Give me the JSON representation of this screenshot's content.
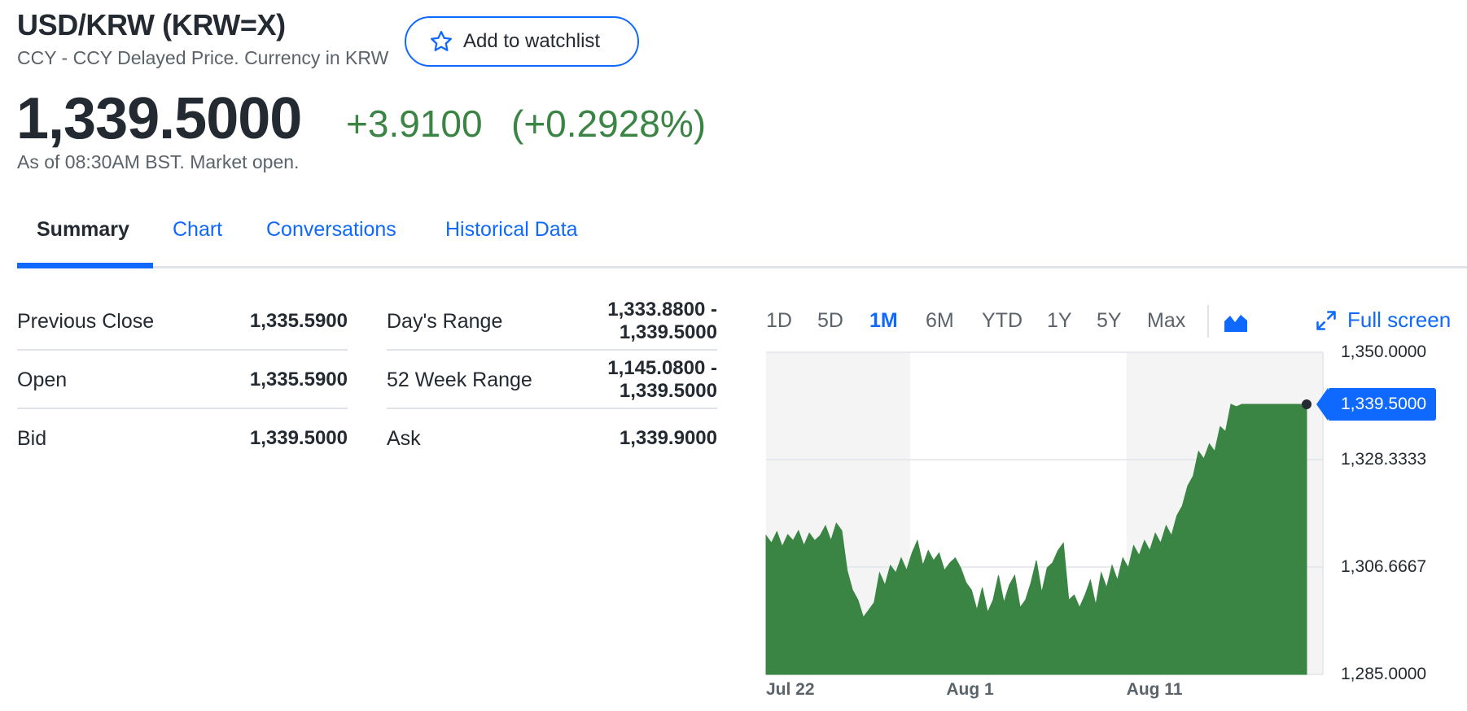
{
  "header": {
    "title": "USD/KRW (KRW=X)",
    "subtitle": "CCY - CCY Delayed Price. Currency in KRW",
    "watchlist_label": "Add to watchlist"
  },
  "quote": {
    "price": "1,339.5000",
    "change": "+3.9100",
    "change_percent": "(+0.2928%)",
    "as_of": "As of 08:30AM BST. Market open."
  },
  "tabs": [
    {
      "label": "Summary",
      "active": true
    },
    {
      "label": "Chart",
      "active": false
    },
    {
      "label": "Conversations",
      "active": false
    },
    {
      "label": "Historical Data",
      "active": false
    }
  ],
  "stats_left": [
    {
      "label": "Previous Close",
      "value": "1,335.5900"
    },
    {
      "label": "Open",
      "value": "1,335.5900"
    },
    {
      "label": "Bid",
      "value": "1,339.5000"
    }
  ],
  "stats_right": [
    {
      "label": "Day's Range",
      "value_line1": "1,333.8800 -",
      "value_line2": "1,339.5000"
    },
    {
      "label": "52 Week Range",
      "value_line1": "1,145.0800 -",
      "value_line2": "1,339.5000"
    },
    {
      "label": "Ask",
      "value_line1": "1,339.9000",
      "value_line2": ""
    }
  ],
  "chart_controls": {
    "ranges": [
      "1D",
      "5D",
      "1M",
      "6M",
      "YTD",
      "1Y",
      "5Y",
      "Max"
    ],
    "active_range": "1M",
    "chart_type_icon": "area-chart-icon",
    "fullscreen_label": "Full screen"
  },
  "colors": {
    "accent": "#0f69ff",
    "positive": "#3a8444",
    "text": "#232a31",
    "muted": "#5b636a"
  },
  "chart_data": {
    "type": "area",
    "ylim": [
      1285.0,
      1350.0
    ],
    "y_ticks": [
      "1,350.0000",
      "1,328.3333",
      "1,306.6667",
      "1,285.0000"
    ],
    "y_tick_values": [
      1350.0,
      1328.3333,
      1306.6667,
      1285.0
    ],
    "x_ticks": [
      "Jul 22",
      "Aug 1",
      "Aug 11"
    ],
    "x_tick_days": [
      0,
      10,
      20
    ],
    "last_price_label": "1,339.5000",
    "last_price": 1339.5,
    "series": [
      {
        "day": [
          0,
          0.3,
          0.6,
          0.9,
          1.2,
          1.5,
          1.8,
          2.1,
          2.4,
          2.7,
          3.0,
          3.3,
          3.6,
          3.9,
          4.2,
          4.5,
          4.8,
          5.1,
          5.4,
          5.7,
          6.0,
          6.3,
          6.6,
          6.9,
          7.2,
          7.5,
          7.8,
          8.1,
          8.4,
          8.7,
          9.0,
          9.3,
          9.6,
          9.9,
          10.2,
          10.5,
          10.8,
          11.1,
          11.4,
          11.7,
          12.0,
          12.3,
          12.6,
          12.9,
          13.2,
          13.5,
          13.8,
          14.1,
          14.4,
          14.7,
          15.0,
          15.3,
          15.6,
          15.9,
          16.2,
          16.5,
          16.8,
          17.1,
          17.4,
          17.7,
          18.0,
          18.3,
          18.6,
          18.9,
          19.2,
          19.5,
          19.8,
          20.1,
          20.4,
          20.7,
          21.0,
          21.3,
          21.6,
          21.9,
          22.2,
          22.5,
          22.8,
          23.1,
          23.4,
          23.7,
          24.0,
          24.3,
          24.6,
          24.9,
          25.2,
          25.5,
          25.8,
          26.1,
          26.4,
          26.7,
          27.0,
          27.3,
          27.6,
          27.9,
          28.2,
          28.5,
          28.8,
          29.1,
          29.4,
          29.7,
          30.0
        ],
        "values": [
          1313.0,
          1311.5,
          1313.8,
          1310.8,
          1313.2,
          1312.0,
          1314.0,
          1311.0,
          1313.5,
          1312.0,
          1313.0,
          1315.0,
          1312.0,
          1315.5,
          1314.0,
          1306.0,
          1302.0,
          1300.0,
          1296.5,
          1298.0,
          1299.5,
          1305.5,
          1303.0,
          1307.0,
          1305.5,
          1308.5,
          1306.0,
          1309.5,
          1312.0,
          1307.0,
          1310.0,
          1308.0,
          1309.5,
          1306.0,
          1307.5,
          1308.5,
          1306.5,
          1303.5,
          1302.0,
          1298.0,
          1302.5,
          1297.5,
          1300.0,
          1305.0,
          1299.5,
          1303.0,
          1305.0,
          1298.5,
          1300.0,
          1303.5,
          1308.0,
          1301.5,
          1306.5,
          1307.5,
          1310.0,
          1311.5,
          1300.0,
          1301.0,
          1298.5,
          1301.0,
          1304.0,
          1299.0,
          1305.5,
          1302.5,
          1307.0,
          1304.0,
          1308.5,
          1306.5,
          1311.0,
          1309.0,
          1312.0,
          1310.0,
          1313.5,
          1311.5,
          1315.0,
          1313.0,
          1317.0,
          1319.0,
          1323.0,
          1325.0,
          1330.0,
          1328.5,
          1331.5,
          1330.0,
          1335.0,
          1334.0,
          1339.5,
          1339.0,
          1339.5,
          1339.5,
          1339.5,
          1339.5,
          1339.5,
          1339.5,
          1339.5,
          1339.5,
          1339.5,
          1339.5,
          1339.5,
          1339.5,
          1339.5
        ]
      }
    ],
    "shaded_ranges": [
      [
        0,
        8
      ],
      [
        20,
        30
      ]
    ]
  }
}
